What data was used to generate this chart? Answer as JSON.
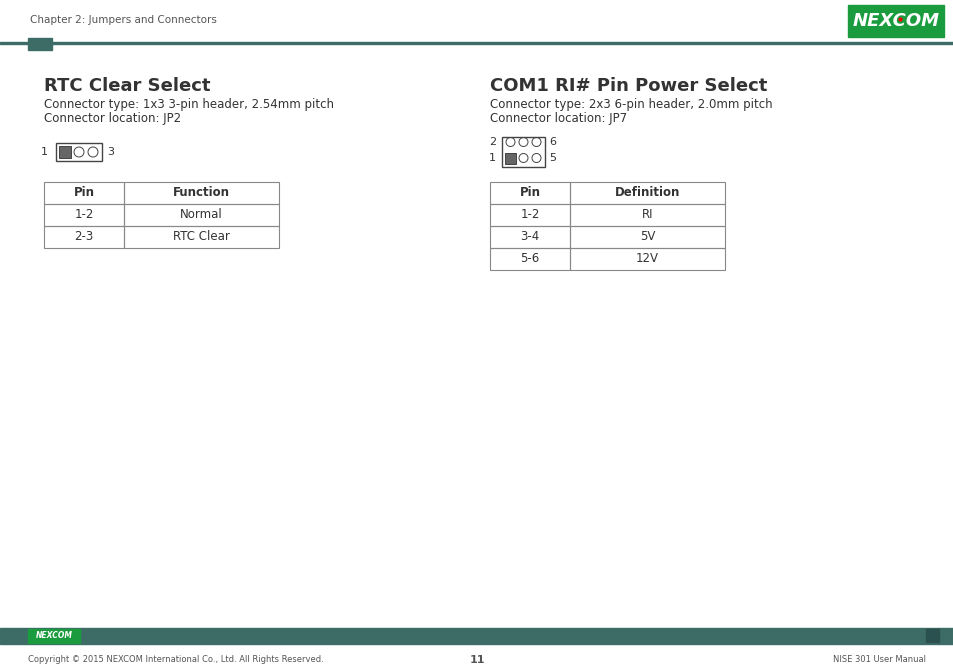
{
  "bg_color": "#ffffff",
  "header_bar_color": "#3d6b65",
  "header_text": "Chapter 2: Jumpers and Connectors",
  "header_text_color": "#555555",
  "footer_bar_color": "#3d6b65",
  "footer_copyright": "Copyright © 2015 NEXCOM International Co., Ltd. All Rights Reserved.",
  "footer_page": "11",
  "footer_manual": "NISE 301 User Manual",
  "footer_text_color": "#ffffff",
  "footer_copyright_color": "#555555",
  "accent_rect_color": "#3d6b65",
  "nexcom_bg": "#1a9c3e",
  "section1_title": "RTC Clear Select",
  "section1_line1": "Connector type: 1x3 3-pin header, 2.54mm pitch",
  "section1_line2": "Connector location: JP2",
  "section2_title": "COM1 RI# Pin Power Select",
  "section2_line1": "Connector type: 2x3 6-pin header, 2.0mm pitch",
  "section2_line2": "Connector location: JP7",
  "table1_headers": [
    "Pin",
    "Function"
  ],
  "table1_rows": [
    [
      "1-2",
      "Normal"
    ],
    [
      "2-3",
      "RTC Clear"
    ]
  ],
  "table2_headers": [
    "Pin",
    "Definition"
  ],
  "table2_rows": [
    [
      "1-2",
      "RI"
    ],
    [
      "3-4",
      "5V"
    ],
    [
      "5-6",
      "12V"
    ]
  ],
  "text_color": "#333333",
  "table_border_color": "#888888",
  "pin_border_color": "#444444",
  "pin_fill_color": "#666666"
}
